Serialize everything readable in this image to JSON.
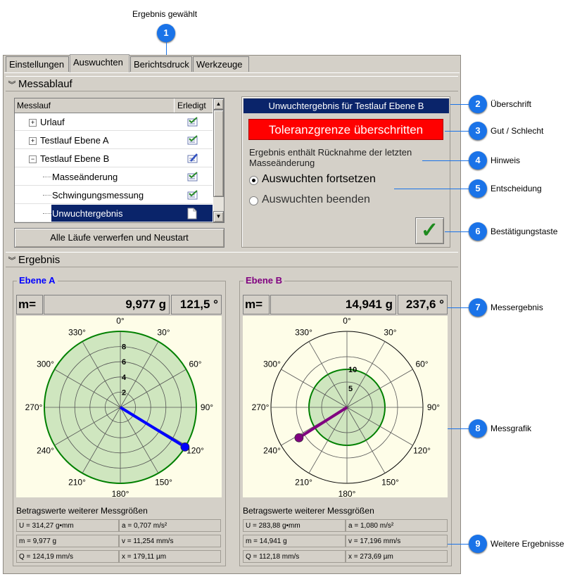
{
  "annotations": {
    "top_label": "Ergebnis gewählt",
    "items": [
      {
        "num": "1",
        "label": ""
      },
      {
        "num": "2",
        "label": "Überschrift"
      },
      {
        "num": "3",
        "label": "Gut / Schlecht"
      },
      {
        "num": "4",
        "label": "Hinweis"
      },
      {
        "num": "5",
        "label": "Entscheidung"
      },
      {
        "num": "6",
        "label": "Bestätigungstaste"
      },
      {
        "num": "7",
        "label": "Messergebnis"
      },
      {
        "num": "8",
        "label": "Messgrafik"
      },
      {
        "num": "9",
        "label": "Weitere Ergebnisse"
      }
    ]
  },
  "tabs": [
    "Einstellungen",
    "Auswuchten",
    "Berichtsdruck",
    "Werkzeuge"
  ],
  "messablauf": {
    "title": "Messablauf",
    "col_messlauf": "Messlauf",
    "col_erledigt": "Erledigt",
    "rows": [
      "Urlauf",
      "Testlauf Ebene A",
      "Testlauf Ebene B",
      "Masseänderung",
      "Schwingungsmessung",
      "Unwuchtergebnis"
    ],
    "reset_button": "Alle Läufe verwerfen und Neustart"
  },
  "result_panel": {
    "header": "Unwuchtergebnis für Testlauf Ebene B",
    "status": "Toleranzgrenze überschritten",
    "hint": "Ergebnis enthält Rücknahme der letzten Masseänderung",
    "option1": "Auswuchten fortsetzen",
    "option2": "Auswuchten beenden",
    "confirm_symbol": "✓"
  },
  "ergebnis": {
    "title": "Ergebnis",
    "m_label": "m=",
    "more_label": "Betragswerte weiterer Messgrößen",
    "angle_labels": [
      "0°",
      "30°",
      "60°",
      "90°",
      "120°",
      "150°",
      "180°",
      "210°",
      "240°",
      "270°",
      "300°",
      "330°"
    ],
    "plane_a": {
      "title": "Ebene A",
      "mass": "9,977 g",
      "angle": "121,5 °",
      "angle_value": 121.5,
      "radius_ticks": [
        "2",
        "4",
        "6",
        "8"
      ],
      "scale_max": 10,
      "tolerance": 10,
      "magnitude": 9.977,
      "values": [
        "U = 314,27 g•mm",
        "a = 0,707 m/s²",
        "m = 9,977 g",
        "v = 11,254 mm/s",
        "Q = 124,19 mm/s",
        "x = 179,11 µm"
      ]
    },
    "plane_b": {
      "title": "Ebene B",
      "mass": "14,941 g",
      "angle": "237,6 °",
      "angle_value": 237.6,
      "radius_ticks": [
        "5",
        "10"
      ],
      "scale_max": 20,
      "tolerance": 10,
      "magnitude": 14.941,
      "values": [
        "U = 283,88 g•mm",
        "a = 1,080 m/s²",
        "m = 14,941 g",
        "v = 17,196 mm/s",
        "Q = 112,18 mm/s",
        "x = 273,69 µm"
      ]
    }
  },
  "colors": {
    "plane_a": "#0000ff",
    "plane_b": "#800080",
    "header_bg": "#0a246a",
    "status_bg": "#ff0000",
    "callout": "#1a73e8",
    "tolerance_fill": "#cfe6bf",
    "tolerance_stroke": "#008000"
  }
}
